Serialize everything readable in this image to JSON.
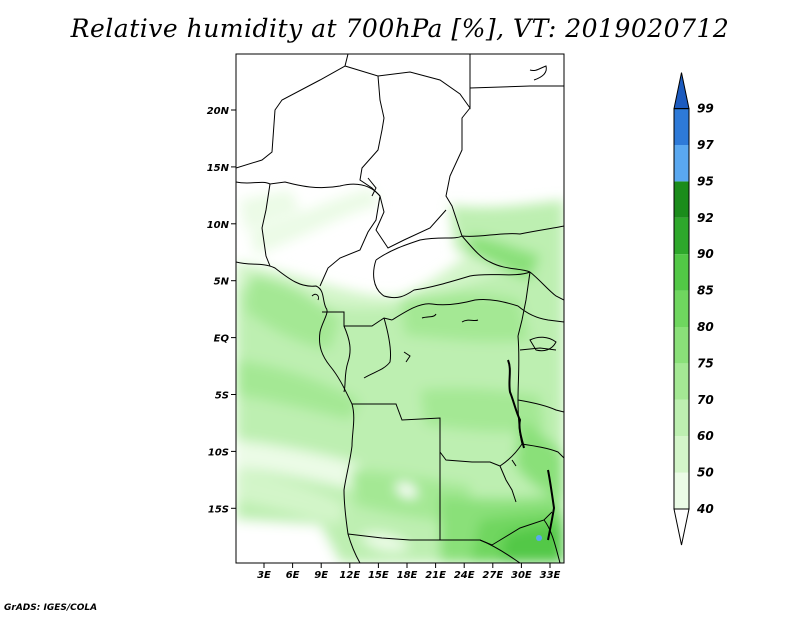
{
  "title": "Relative humidity at 700hPa [%], VT: 2019020712",
  "credit": "GrADS: IGES/COLA",
  "map": {
    "lat_ticks": [
      "20N",
      "15N",
      "10N",
      "5N",
      "EQ",
      "5S",
      "10S",
      "15S"
    ],
    "lon_ticks": [
      "3E",
      "6E",
      "9E",
      "12E",
      "15E",
      "18E",
      "21E",
      "24E",
      "27E",
      "30E",
      "33E"
    ]
  },
  "colorbar": {
    "labels": [
      "40",
      "50",
      "60",
      "70",
      "75",
      "80",
      "85",
      "90",
      "92",
      "95",
      "97",
      "99"
    ],
    "colors": [
      "#ffffff",
      "#ebfbe6",
      "#d3f5c9",
      "#bdefb1",
      "#a4e894",
      "#8ae079",
      "#6fd65f",
      "#52c846",
      "#2ea82b",
      "#1b8c1b",
      "#5aa8f0",
      "#2e7ad8",
      "#1c5bbf"
    ]
  }
}
